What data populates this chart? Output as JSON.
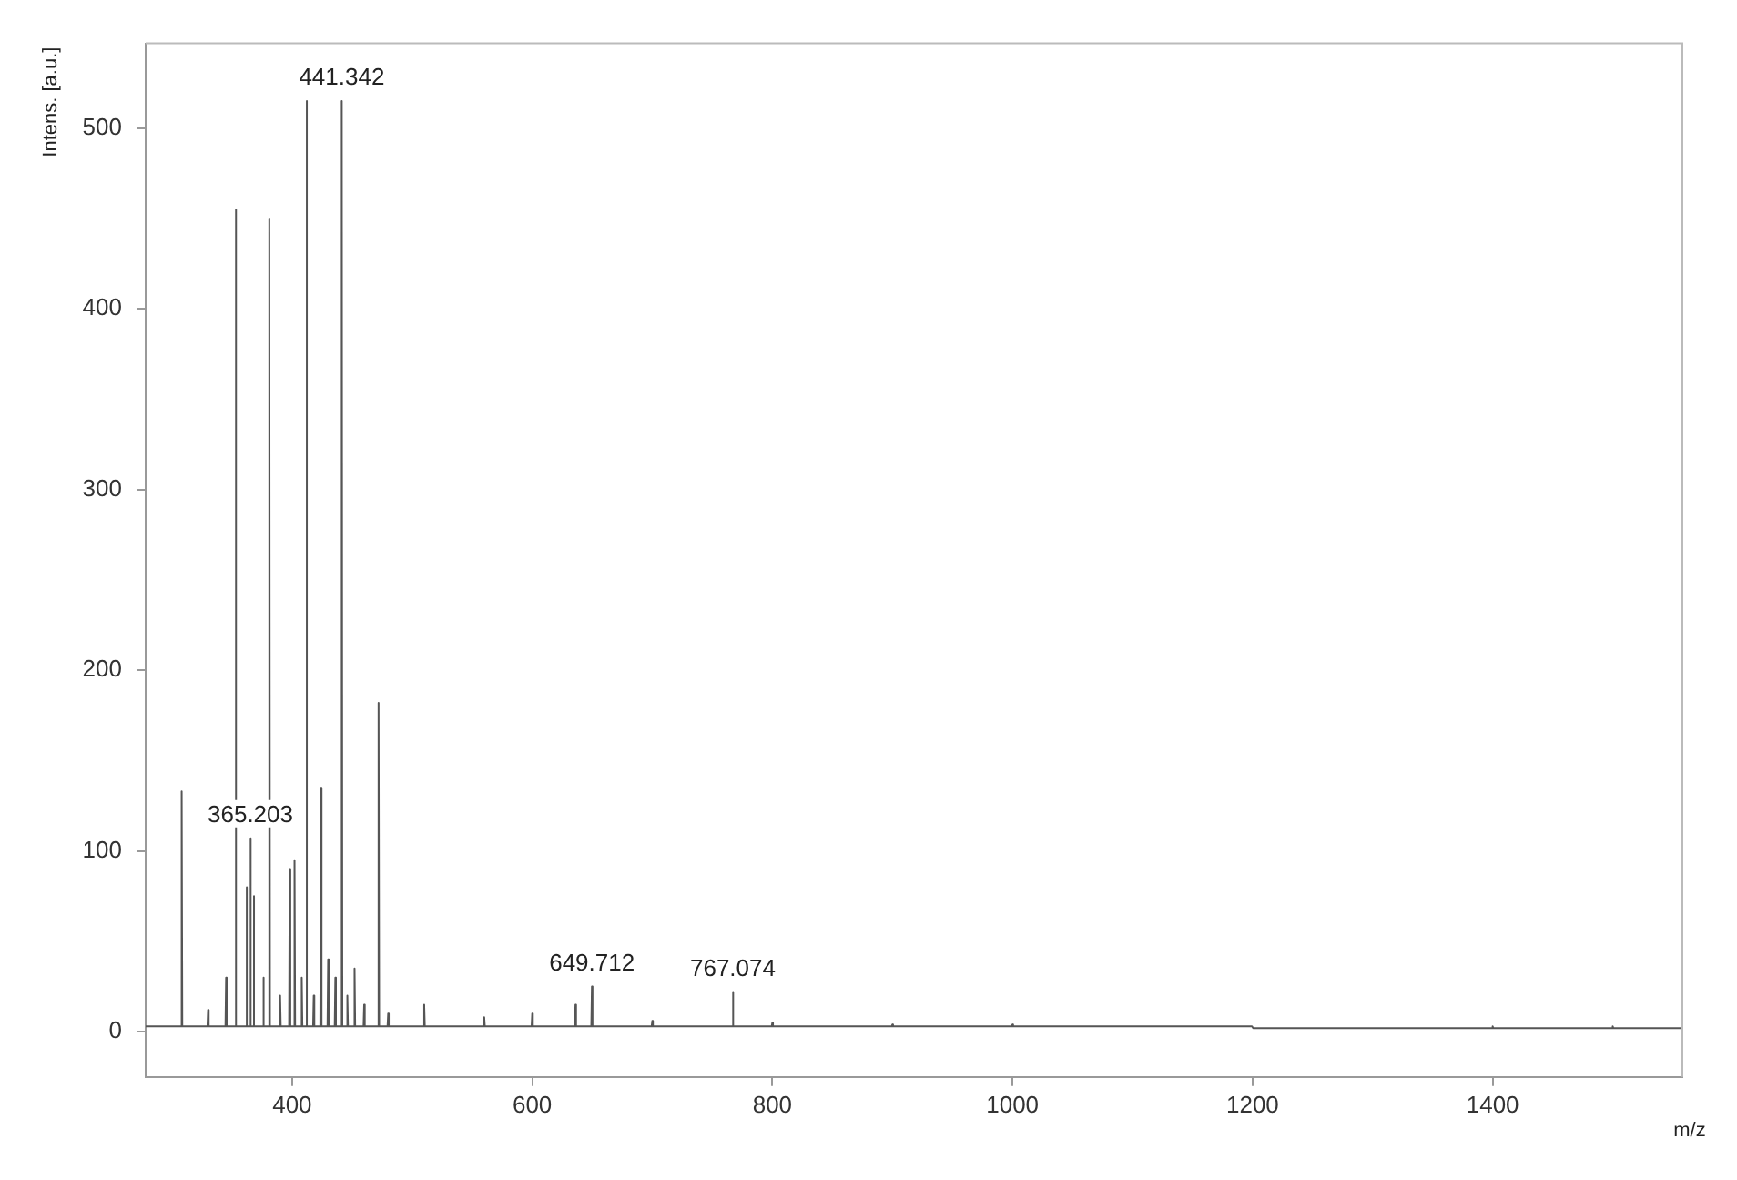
{
  "chart_data": {
    "type": "line",
    "xlabel": "m/z",
    "ylabel": "Intens. [a.u.]",
    "series": [
      {
        "color": "#555555",
        "x": [
          278,
          307.5,
          308,
          308.5,
          329.5,
          330,
          330.5,
          344.5,
          345,
          345.5,
          352.5,
          353,
          353.5,
          361.5,
          362,
          362.5,
          364.7,
          365.203,
          365.7,
          367.5,
          368,
          368.5,
          375.5,
          376,
          376.5,
          380.5,
          381,
          381.5,
          389.5,
          390,
          390.5,
          397.5,
          398,
          398.5,
          401.5,
          402,
          402.5,
          407.5,
          408,
          408.5,
          411.5,
          412,
          412.5,
          417.5,
          418,
          418.5,
          423.5,
          424,
          424.5,
          429.5,
          430,
          430.5,
          435.5,
          436,
          436.5,
          440.8,
          441.342,
          441.8,
          445.5,
          446,
          446.5,
          451.5,
          452,
          452.5,
          459.5,
          460,
          460.5,
          471.5,
          472,
          472.5,
          479.5,
          480,
          480.5,
          509.5,
          510,
          510.5,
          559.5,
          560,
          560.5,
          599.5,
          600,
          600.5,
          635.5,
          636,
          636.5,
          649.2,
          649.712,
          650.2,
          699.5,
          700,
          700.5,
          766.6,
          767.074,
          767.6,
          799.5,
          800,
          800.5,
          899.5,
          900,
          900.5,
          999.5,
          1000,
          1000.5,
          1199.5,
          1200,
          1200.5,
          1399.5,
          1400,
          1400.5,
          1499.5,
          1500,
          1500.5,
          1558
        ],
        "values": [
          3,
          3,
          133,
          3,
          3,
          12,
          3,
          3,
          30,
          3,
          3,
          455,
          3,
          3,
          80,
          3,
          3,
          107,
          3,
          3,
          75,
          3,
          3,
          30,
          3,
          3,
          450,
          3,
          3,
          20,
          3,
          3,
          90,
          3,
          3,
          95,
          3,
          3,
          30,
          3,
          3,
          515,
          3,
          3,
          20,
          3,
          3,
          135,
          3,
          3,
          40,
          3,
          3,
          30,
          3,
          3,
          515,
          3,
          3,
          20,
          3,
          3,
          35,
          3,
          3,
          15,
          3,
          3,
          182,
          3,
          3,
          10,
          3,
          3,
          15,
          3,
          3,
          8,
          3,
          3,
          10,
          3,
          3,
          15,
          3,
          3,
          25,
          3,
          3,
          6,
          3,
          3,
          22,
          3,
          3,
          5,
          3,
          3,
          4,
          3,
          3,
          4,
          3,
          3,
          3,
          2,
          2,
          3,
          2,
          2,
          3,
          2,
          2
        ]
      }
    ],
    "annotations": [
      {
        "text": "365.203",
        "x": 365.203,
        "y": 107
      },
      {
        "text": "441.342",
        "x": 441.342,
        "y": 515
      },
      {
        "text": "649.712",
        "x": 649.712,
        "y": 25
      },
      {
        "text": "767.074",
        "x": 767.074,
        "y": 22
      }
    ],
    "xlim": [
      278,
      1558
    ],
    "xticks": [
      400,
      600,
      800,
      1000,
      1200,
      1400
    ],
    "ylim": [
      -25,
      547
    ],
    "yticks": [
      0,
      100,
      200,
      300,
      400,
      500
    ],
    "grid": false,
    "legend": false,
    "marker": "none",
    "line_style": "solid"
  }
}
